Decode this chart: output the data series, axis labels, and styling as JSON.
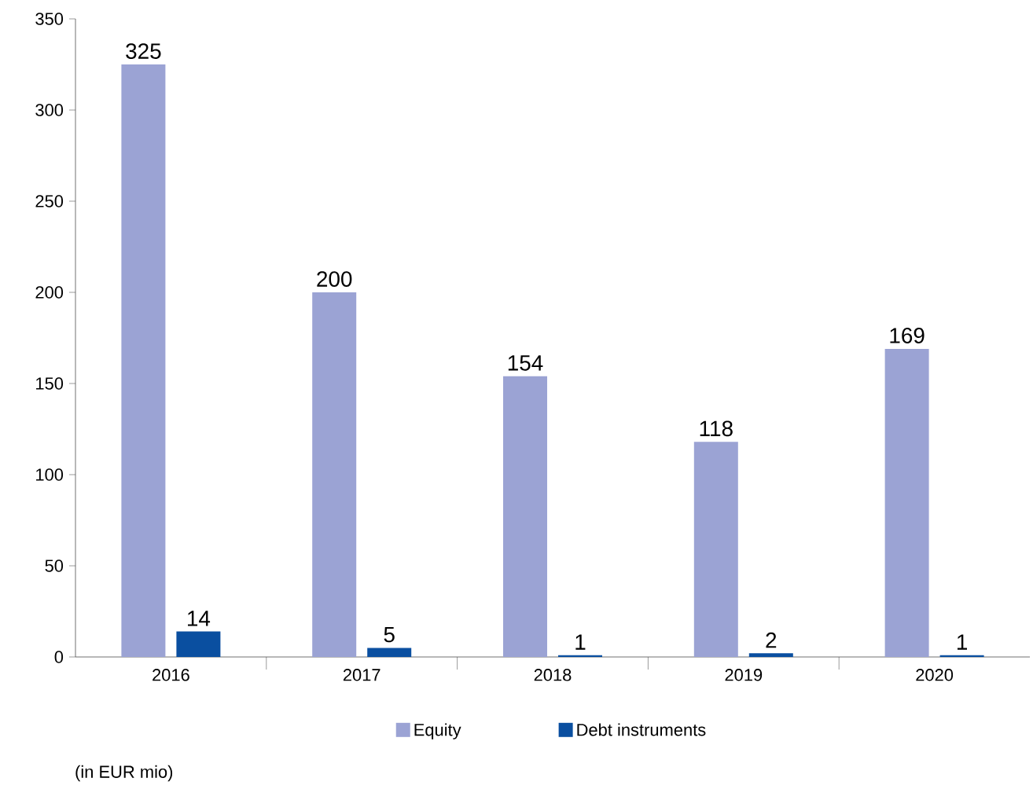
{
  "chart_data": {
    "type": "bar",
    "categories": [
      "2016",
      "2017",
      "2018",
      "2019",
      "2020"
    ],
    "series": [
      {
        "name": "Equity",
        "color": "#9ba3d4",
        "values": [
          325,
          200,
          154,
          118,
          169
        ]
      },
      {
        "name": "Debt instruments",
        "color": "#0a4fa0",
        "values": [
          14,
          5,
          1,
          2,
          1
        ]
      }
    ],
    "ylim": [
      0,
      350
    ],
    "yticks": [
      0,
      50,
      100,
      150,
      200,
      250,
      300,
      350
    ],
    "data_labels": true,
    "legend": "bottom",
    "grid": false,
    "annotations": [
      "(in EUR mio)"
    ]
  }
}
